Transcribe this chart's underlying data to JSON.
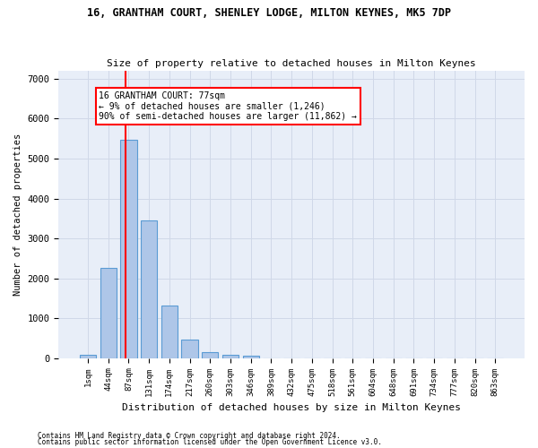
{
  "title": "16, GRANTHAM COURT, SHENLEY LODGE, MILTON KEYNES, MK5 7DP",
  "subtitle": "Size of property relative to detached houses in Milton Keynes",
  "xlabel": "Distribution of detached houses by size in Milton Keynes",
  "ylabel": "Number of detached properties",
  "footnote1": "Contains HM Land Registry data © Crown copyright and database right 2024.",
  "footnote2": "Contains public sector information licensed under the Open Government Licence v3.0.",
  "categories": [
    "1sqm",
    "44sqm",
    "87sqm",
    "131sqm",
    "174sqm",
    "217sqm",
    "260sqm",
    "303sqm",
    "346sqm",
    "389sqm",
    "432sqm",
    "475sqm",
    "518sqm",
    "561sqm",
    "604sqm",
    "648sqm",
    "691sqm",
    "734sqm",
    "777sqm",
    "820sqm",
    "863sqm"
  ],
  "values": [
    80,
    2270,
    5480,
    3450,
    1310,
    460,
    160,
    90,
    60,
    0,
    0,
    0,
    0,
    0,
    0,
    0,
    0,
    0,
    0,
    0,
    0
  ],
  "bar_color": "#aec6e8",
  "bar_edge_color": "#5a9bd4",
  "grid_color": "#d0d8e8",
  "background_color": "#e8eef8",
  "red_line_x": 1.85,
  "annotation_line1": "16 GRANTHAM COURT: 77sqm",
  "annotation_line2": "← 9% of detached houses are smaller (1,246)",
  "annotation_line3": "90% of semi-detached houses are larger (11,862) →",
  "ylim": [
    0,
    7200
  ],
  "yticks": [
    0,
    1000,
    2000,
    3000,
    4000,
    5000,
    6000,
    7000
  ]
}
